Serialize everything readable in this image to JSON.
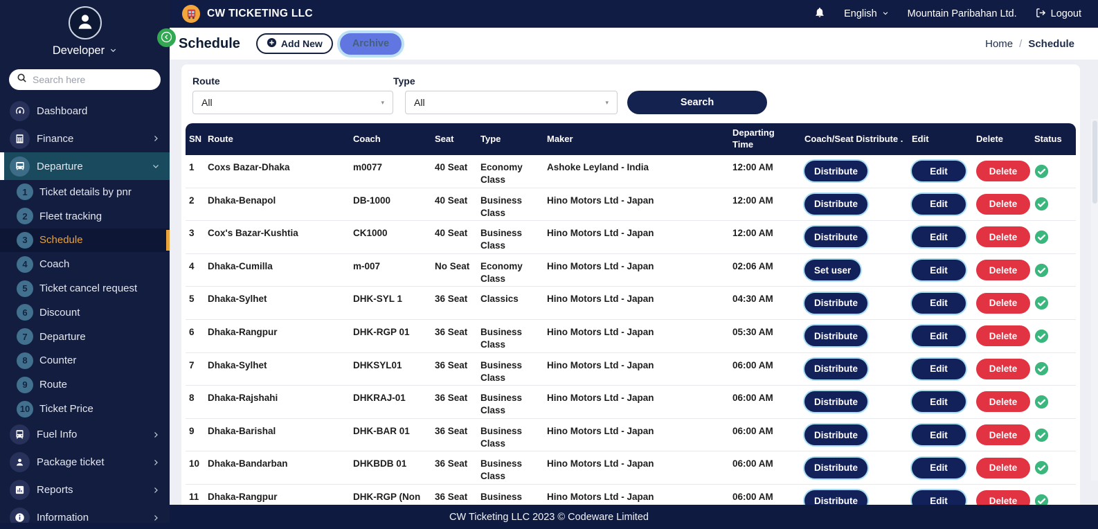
{
  "navbar": {
    "brand": "CW TICKETING LLC",
    "language": "English",
    "company": "Mountain Paribahan Ltd.",
    "logout": "Logout"
  },
  "sidebar": {
    "user_name": "Developer",
    "search_placeholder": "Search here",
    "main_items_top": [
      {
        "label": "Dashboard",
        "icon": "dashboard-icon",
        "expandable": false
      },
      {
        "label": "Finance",
        "icon": "calculator-icon",
        "expandable": true
      },
      {
        "label": "Departure",
        "icon": "bus-icon",
        "expandable": true,
        "expanded": true
      }
    ],
    "departure_subitems": [
      {
        "num": "1",
        "label": "Ticket details by pnr",
        "active": false
      },
      {
        "num": "2",
        "label": "Fleet tracking",
        "active": false
      },
      {
        "num": "3",
        "label": "Schedule",
        "active": true
      },
      {
        "num": "4",
        "label": "Coach",
        "active": false
      },
      {
        "num": "5",
        "label": "Ticket cancel request",
        "active": false
      },
      {
        "num": "6",
        "label": "Discount",
        "active": false
      },
      {
        "num": "7",
        "label": "Departure",
        "active": false
      },
      {
        "num": "8",
        "label": "Counter",
        "active": false
      },
      {
        "num": "9",
        "label": "Route",
        "active": false
      },
      {
        "num": "10",
        "label": "Ticket Price",
        "active": false
      }
    ],
    "main_items_bottom": [
      {
        "label": "Fuel Info",
        "icon": "fuel-icon",
        "expandable": true
      },
      {
        "label": "Package ticket",
        "icon": "person-icon",
        "expandable": true
      },
      {
        "label": "Reports",
        "icon": "bar-chart-icon",
        "expandable": true
      },
      {
        "label": "Information",
        "icon": "info-icon",
        "expandable": true
      }
    ]
  },
  "page_header": {
    "title": "Schedule",
    "add_new": "Add New",
    "archive": "Archive",
    "breadcrumb_home": "Home",
    "breadcrumb_separator": "/",
    "breadcrumb_current": "Schedule"
  },
  "filters": {
    "route_label": "Route",
    "route_value": "All",
    "type_label": "Type",
    "type_value": "All",
    "search_button": "Search"
  },
  "table": {
    "headers": [
      "SN",
      "Route",
      "Coach",
      "Seat",
      "Type",
      "Maker",
      "Departing Time",
      "Coach/Seat Distribute .",
      "Edit",
      "Delete",
      "Status"
    ],
    "actions": {
      "edit": "Edit",
      "delete": "Delete"
    },
    "rows": [
      {
        "sn": "1",
        "route": "Coxs Bazar-Dhaka",
        "coach": "m0077",
        "seat": "40 Seat",
        "type": "Economy Class",
        "maker": "Ashoke Leyland - India",
        "time": "12:00 AM",
        "distribute": "Distribute",
        "status": "active"
      },
      {
        "sn": "2",
        "route": "Dhaka-Benapol",
        "coach": "DB-1000",
        "seat": "40 Seat",
        "type": "Business Class",
        "maker": "Hino Motors Ltd - Japan",
        "time": "12:00 AM",
        "distribute": "Distribute",
        "status": "active"
      },
      {
        "sn": "3",
        "route": "Cox's Bazar-Kushtia",
        "coach": "CK1000",
        "seat": "40 Seat",
        "type": "Business Class",
        "maker": "Hino Motors Ltd - Japan",
        "time": "12:00 AM",
        "distribute": "Distribute",
        "status": "active"
      },
      {
        "sn": "4",
        "route": "Dhaka-Cumilla",
        "coach": "m-007",
        "seat": "No Seat",
        "type": "Economy Class",
        "maker": "Hino Motors Ltd - Japan",
        "time": "02:06 AM",
        "distribute": "Set user",
        "status": "active"
      },
      {
        "sn": "5",
        "route": "Dhaka-Sylhet",
        "coach": "DHK-SYL 1",
        "seat": "36 Seat",
        "type": "Classics",
        "maker": "Hino Motors Ltd - Japan",
        "time": "04:30 AM",
        "distribute": "Distribute",
        "status": "active"
      },
      {
        "sn": "6",
        "route": "Dhaka-Rangpur",
        "coach": "DHK-RGP 01",
        "seat": "36 Seat",
        "type": "Business Class",
        "maker": "Hino Motors Ltd - Japan",
        "time": "05:30 AM",
        "distribute": "Distribute",
        "status": "active"
      },
      {
        "sn": "7",
        "route": "Dhaka-Sylhet",
        "coach": "DHKSYL01",
        "seat": "36 Seat",
        "type": "Business Class",
        "maker": "Hino Motors Ltd - Japan",
        "time": "06:00 AM",
        "distribute": "Distribute",
        "status": "active"
      },
      {
        "sn": "8",
        "route": "Dhaka-Rajshahi",
        "coach": "DHKRAJ-01",
        "seat": "36 Seat",
        "type": "Business Class",
        "maker": "Hino Motors Ltd - Japan",
        "time": "06:00 AM",
        "distribute": "Distribute",
        "status": "active"
      },
      {
        "sn": "9",
        "route": "Dhaka-Barishal",
        "coach": "DHK-BAR 01",
        "seat": "36 Seat",
        "type": "Business Class",
        "maker": "Hino Motors Ltd - Japan",
        "time": "06:00 AM",
        "distribute": "Distribute",
        "status": "active"
      },
      {
        "sn": "10",
        "route": "Dhaka-Bandarban",
        "coach": "DHKBDB 01",
        "seat": "36 Seat",
        "type": "Business Class",
        "maker": "Hino Motors Ltd - Japan",
        "time": "06:00 AM",
        "distribute": "Distribute",
        "status": "active"
      },
      {
        "sn": "11",
        "route": "Dhaka-Rangpur",
        "coach": "DHK-RGP (Non",
        "seat": "36 Seat",
        "type": "Business Class",
        "maker": "Hino Motors Ltd - Japan",
        "time": "06:00 AM",
        "distribute": "Distribute",
        "status": "active"
      }
    ]
  },
  "footer": {
    "text": "CW Ticketing LLC 2023 © Codeware Limited"
  },
  "colors": {
    "navy": "#111c44",
    "sidebar_navy": "#131d40",
    "departure_teal": "#1a4a5e",
    "subitem_circle": "#41718f",
    "active_amber": "#e9a23c",
    "archive_blue": "#6276e2",
    "archive_ring": "#bce1f3",
    "delete_red": "#e13342",
    "status_green": "#3bb77e",
    "toggle_green": "#33a852",
    "logo_orange": "#f2a63b",
    "page_bg": "#edeff4"
  }
}
